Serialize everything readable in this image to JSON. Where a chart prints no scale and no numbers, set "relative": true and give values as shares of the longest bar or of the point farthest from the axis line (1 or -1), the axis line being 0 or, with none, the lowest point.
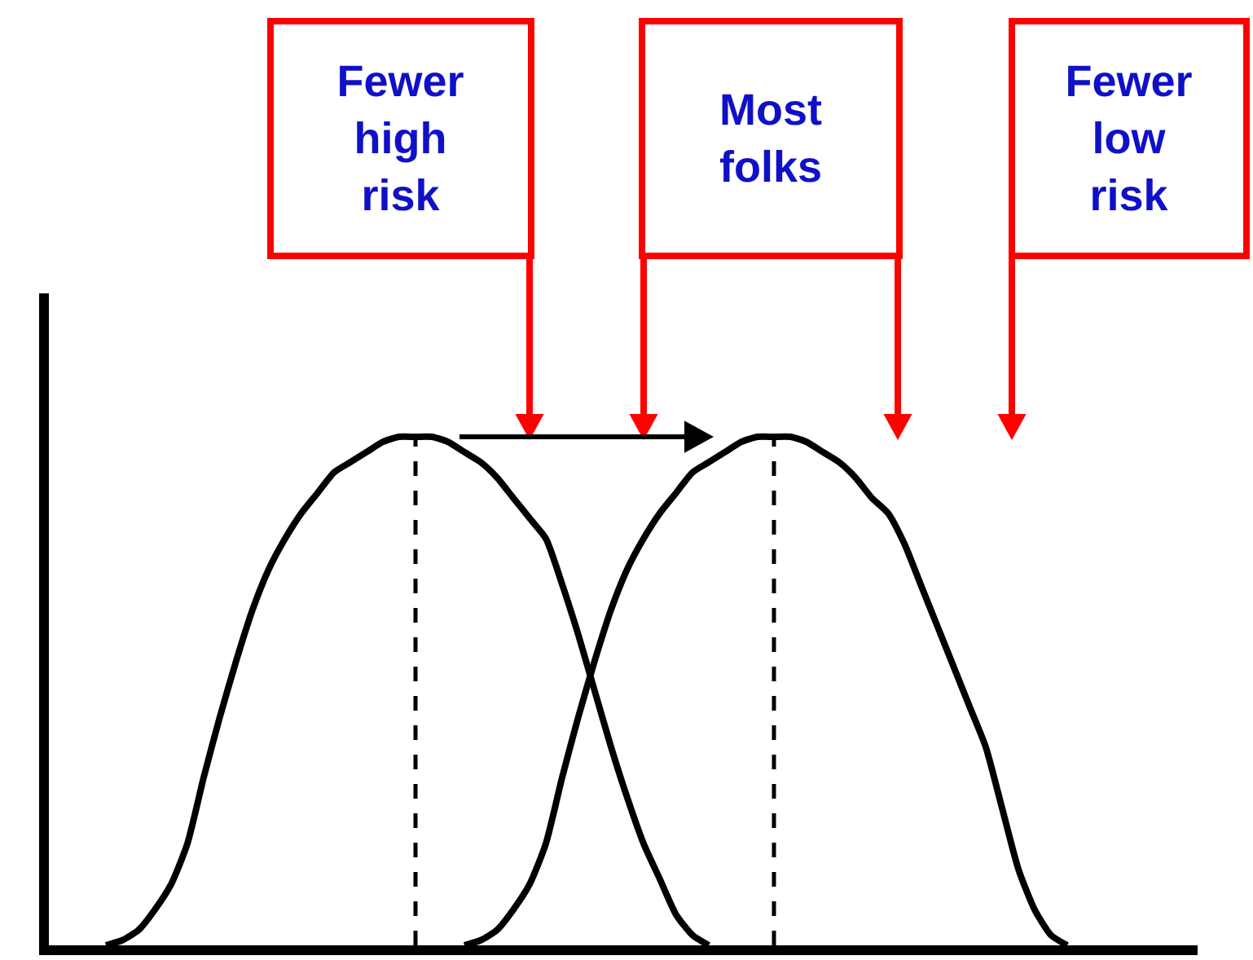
{
  "chart_data": {
    "type": "line",
    "relative": true,
    "categories": [
      null,
      null,
      null,
      null,
      null,
      null,
      null,
      null,
      null,
      null,
      null,
      null,
      null,
      null,
      null,
      null,
      null,
      null,
      null,
      null,
      null,
      null,
      null,
      null,
      null,
      null,
      null,
      null,
      null,
      null,
      null,
      null,
      null,
      null,
      null,
      null,
      null,
      null,
      null,
      null,
      null,
      null,
      null,
      null,
      null,
      null,
      null,
      null,
      null,
      null,
      null,
      null,
      null,
      null,
      null,
      null,
      null,
      null,
      null,
      null,
      null,
      null,
      null,
      null,
      null,
      null,
      null,
      null,
      null,
      null
    ],
    "series": [
      {
        "color": "#000000",
        "values": [
          null,
          null,
          null,
          0,
          0.01,
          0.03,
          0.07,
          0.12,
          0.2,
          0.33,
          0.45,
          0.56,
          0.66,
          0.74,
          0.8,
          0.85,
          0.89,
          0.93,
          0.95,
          0.97,
          0.99,
          1,
          1,
          1,
          0.99,
          0.97,
          0.95,
          0.92,
          0.88,
          0.84,
          0.8,
          0.71,
          0.61,
          0.5,
          0.39,
          0.29,
          0.2,
          0.13,
          0.06,
          0.02,
          0,
          null,
          null,
          null,
          null,
          null,
          null,
          null,
          null,
          null,
          null,
          null,
          null,
          null,
          null,
          null,
          null,
          null,
          null,
          null,
          null,
          null,
          null,
          null,
          null,
          null,
          null,
          null,
          null,
          null
        ]
      },
      {
        "color": "#000000",
        "values": [
          null,
          null,
          null,
          null,
          null,
          null,
          null,
          null,
          null,
          null,
          null,
          null,
          null,
          null,
          null,
          null,
          null,
          null,
          null,
          null,
          null,
          null,
          null,
          null,
          null,
          0,
          0.01,
          0.03,
          0.07,
          0.12,
          0.2,
          0.33,
          0.45,
          0.56,
          0.66,
          0.74,
          0.8,
          0.85,
          0.89,
          0.93,
          0.95,
          0.97,
          0.99,
          1,
          1,
          1,
          0.99,
          0.97,
          0.95,
          0.92,
          0.88,
          0.85,
          0.79,
          0.71,
          0.63,
          0.55,
          0.47,
          0.39,
          0.27,
          0.15,
          0.07,
          0.02,
          0,
          null,
          null,
          null,
          null,
          null,
          null,
          null
        ]
      }
    ],
    "line_style": "solid",
    "annotations": [
      "Fewer\nhigh\nrisk",
      "Most\nfolks",
      "Fewer\nlow\nrisk"
    ]
  }
}
